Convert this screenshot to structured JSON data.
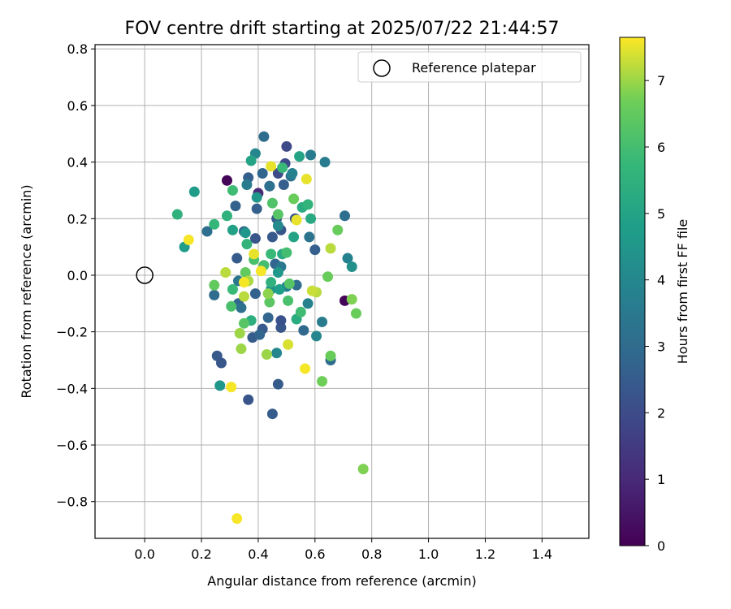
{
  "chart_data": {
    "type": "scatter",
    "title": "FOV centre drift starting at 2025/07/22 21:44:57",
    "xlabel": "Angular distance from reference (arcmin)",
    "ylabel": "Rotation from reference (arcmin)",
    "xlim": [
      -0.175,
      1.565
    ],
    "ylim": [
      -0.93,
      0.815
    ],
    "xticks": [
      0.0,
      0.2,
      0.4,
      0.6,
      0.8,
      1.0,
      1.2,
      1.4
    ],
    "xtick_labels": [
      "0.0",
      "0.2",
      "0.4",
      "0.6",
      "0.8",
      "1.0",
      "1.2",
      "1.4"
    ],
    "yticks": [
      -0.8,
      -0.6,
      -0.4,
      -0.2,
      0.0,
      0.2,
      0.4,
      0.6,
      0.8
    ],
    "ytick_labels": [
      "−0.8",
      "−0.6",
      "−0.4",
      "−0.2",
      "0.0",
      "0.2",
      "0.4",
      "0.6",
      "0.8"
    ],
    "grid": true,
    "legend": {
      "placement": "top-right",
      "entries": [
        "Reference platepar"
      ]
    },
    "reference_point": {
      "name": "Reference platepar",
      "x": 0.0,
      "y": 0.0
    },
    "colorbar": {
      "label": "Hours from first FF file",
      "colormap": "viridis",
      "range": [
        0,
        7.65
      ],
      "ticks": [
        0,
        1,
        2,
        3,
        4,
        5,
        6,
        7
      ],
      "tick_labels": [
        "0",
        "1",
        "2",
        "3",
        "4",
        "5",
        "6",
        "7"
      ]
    },
    "points": [
      {
        "x": 0.29,
        "y": 0.335,
        "c": 0.1
      },
      {
        "x": 0.705,
        "y": -0.09,
        "c": 0.1
      },
      {
        "x": 0.4,
        "y": 0.29,
        "c": 1.0
      },
      {
        "x": 0.44,
        "y": 0.315,
        "c": 1.4
      },
      {
        "x": 0.5,
        "y": 0.455,
        "c": 1.9
      },
      {
        "x": 0.495,
        "y": 0.395,
        "c": 2.0
      },
      {
        "x": 0.47,
        "y": 0.36,
        "c": 2.0
      },
      {
        "x": 0.53,
        "y": 0.2,
        "c": 2.3
      },
      {
        "x": 0.48,
        "y": 0.16,
        "c": 2.3
      },
      {
        "x": 0.45,
        "y": 0.135,
        "c": 2.4
      },
      {
        "x": 0.39,
        "y": 0.13,
        "c": 2.3
      },
      {
        "x": 0.48,
        "y": -0.185,
        "c": 2.3
      },
      {
        "x": 0.415,
        "y": -0.19,
        "c": 2.4
      },
      {
        "x": 0.38,
        "y": -0.22,
        "c": 2.5
      },
      {
        "x": 0.48,
        "y": -0.16,
        "c": 2.2
      },
      {
        "x": 0.255,
        "y": -0.285,
        "c": 2.4
      },
      {
        "x": 0.27,
        "y": -0.31,
        "c": 2.3
      },
      {
        "x": 0.365,
        "y": -0.44,
        "c": 2.3
      },
      {
        "x": 0.45,
        "y": -0.49,
        "c": 2.5
      },
      {
        "x": 0.47,
        "y": -0.385,
        "c": 2.5
      },
      {
        "x": 0.325,
        "y": 0.06,
        "c": 2.5
      },
      {
        "x": 0.395,
        "y": 0.235,
        "c": 2.6
      },
      {
        "x": 0.365,
        "y": 0.345,
        "c": 2.6
      },
      {
        "x": 0.32,
        "y": 0.245,
        "c": 2.7
      },
      {
        "x": 0.35,
        "y": 0.155,
        "c": 2.8
      },
      {
        "x": 0.415,
        "y": 0.36,
        "c": 2.8
      },
      {
        "x": 0.6,
        "y": 0.09,
        "c": 2.6
      },
      {
        "x": 0.465,
        "y": 0.2,
        "c": 2.6
      },
      {
        "x": 0.49,
        "y": 0.32,
        "c": 2.6
      },
      {
        "x": 0.42,
        "y": 0.49,
        "c": 3.0
      },
      {
        "x": 0.405,
        "y": -0.21,
        "c": 2.8
      },
      {
        "x": 0.435,
        "y": -0.15,
        "c": 2.8
      },
      {
        "x": 0.33,
        "y": -0.1,
        "c": 2.8
      },
      {
        "x": 0.39,
        "y": -0.065,
        "c": 2.7
      },
      {
        "x": 0.46,
        "y": 0.04,
        "c": 2.8
      },
      {
        "x": 0.56,
        "y": -0.195,
        "c": 2.9
      },
      {
        "x": 0.535,
        "y": -0.035,
        "c": 3.0
      },
      {
        "x": 0.245,
        "y": -0.07,
        "c": 3.0
      },
      {
        "x": 0.655,
        "y": -0.3,
        "c": 3.0
      },
      {
        "x": 0.705,
        "y": 0.21,
        "c": 3.1
      },
      {
        "x": 0.22,
        "y": 0.155,
        "c": 3.1
      },
      {
        "x": 0.34,
        "y": -0.115,
        "c": 3.2
      },
      {
        "x": 0.44,
        "y": 0.315,
        "c": 3.2
      },
      {
        "x": 0.58,
        "y": 0.135,
        "c": 3.3
      },
      {
        "x": 0.515,
        "y": 0.35,
        "c": 3.3
      },
      {
        "x": 0.33,
        "y": -0.02,
        "c": 3.4
      },
      {
        "x": 0.48,
        "y": 0.03,
        "c": 3.5
      },
      {
        "x": 0.625,
        "y": -0.165,
        "c": 3.6
      },
      {
        "x": 0.585,
        "y": 0.425,
        "c": 3.6
      },
      {
        "x": 0.635,
        "y": 0.4,
        "c": 3.6
      },
      {
        "x": 0.715,
        "y": 0.06,
        "c": 3.8
      },
      {
        "x": 0.5,
        "y": -0.04,
        "c": 3.7
      },
      {
        "x": 0.36,
        "y": 0.32,
        "c": 3.6
      },
      {
        "x": 0.575,
        "y": -0.1,
        "c": 3.8
      },
      {
        "x": 0.605,
        "y": -0.215,
        "c": 4.0
      },
      {
        "x": 0.39,
        "y": 0.43,
        "c": 4.0
      },
      {
        "x": 0.465,
        "y": -0.275,
        "c": 4.0
      },
      {
        "x": 0.52,
        "y": 0.36,
        "c": 3.8
      },
      {
        "x": 0.47,
        "y": 0.175,
        "c": 4.1
      },
      {
        "x": 0.73,
        "y": 0.03,
        "c": 4.3
      },
      {
        "x": 0.355,
        "y": 0.15,
        "c": 4.5
      },
      {
        "x": 0.445,
        "y": -0.05,
        "c": 4.4
      },
      {
        "x": 0.395,
        "y": 0.275,
        "c": 4.5
      },
      {
        "x": 0.47,
        "y": 0.01,
        "c": 4.6
      },
      {
        "x": 0.265,
        "y": -0.39,
        "c": 4.5
      },
      {
        "x": 0.14,
        "y": 0.1,
        "c": 4.7
      },
      {
        "x": 0.175,
        "y": 0.295,
        "c": 4.7
      },
      {
        "x": 0.475,
        "y": -0.05,
        "c": 4.8
      },
      {
        "x": 0.31,
        "y": 0.16,
        "c": 4.9
      },
      {
        "x": 0.545,
        "y": 0.42,
        "c": 5.0
      },
      {
        "x": 0.375,
        "y": 0.405,
        "c": 5.0
      },
      {
        "x": 0.525,
        "y": 0.135,
        "c": 5.0
      },
      {
        "x": 0.485,
        "y": 0.075,
        "c": 5.2
      },
      {
        "x": 0.585,
        "y": 0.2,
        "c": 5.2
      },
      {
        "x": 0.535,
        "y": -0.155,
        "c": 5.3
      },
      {
        "x": 0.555,
        "y": 0.24,
        "c": 5.3
      },
      {
        "x": 0.375,
        "y": -0.16,
        "c": 5.4
      },
      {
        "x": 0.29,
        "y": 0.21,
        "c": 5.5
      },
      {
        "x": 0.115,
        "y": 0.215,
        "c": 5.5
      },
      {
        "x": 0.445,
        "y": -0.025,
        "c": 5.5
      },
      {
        "x": 0.36,
        "y": 0.11,
        "c": 5.6
      },
      {
        "x": 0.245,
        "y": 0.18,
        "c": 5.7
      },
      {
        "x": 0.575,
        "y": 0.25,
        "c": 5.6
      },
      {
        "x": 0.31,
        "y": -0.05,
        "c": 5.8
      },
      {
        "x": 0.55,
        "y": -0.13,
        "c": 5.9
      },
      {
        "x": 0.445,
        "y": 0.075,
        "c": 5.8
      },
      {
        "x": 0.31,
        "y": 0.3,
        "c": 5.9
      },
      {
        "x": 0.485,
        "y": 0.38,
        "c": 5.8
      },
      {
        "x": 0.42,
        "y": 0.035,
        "c": 6.0
      },
      {
        "x": 0.5,
        "y": 0.08,
        "c": 6.0
      },
      {
        "x": 0.505,
        "y": -0.09,
        "c": 6.1
      },
      {
        "x": 0.385,
        "y": 0.055,
        "c": 6.1
      },
      {
        "x": 0.305,
        "y": -0.11,
        "c": 6.1
      },
      {
        "x": 0.45,
        "y": 0.255,
        "c": 6.2
      },
      {
        "x": 0.47,
        "y": 0.215,
        "c": 6.3
      },
      {
        "x": 0.51,
        "y": -0.03,
        "c": 6.3
      },
      {
        "x": 0.35,
        "y": -0.17,
        "c": 6.3
      },
      {
        "x": 0.44,
        "y": -0.095,
        "c": 6.4
      },
      {
        "x": 0.355,
        "y": 0.01,
        "c": 6.5
      },
      {
        "x": 0.245,
        "y": -0.035,
        "c": 6.5
      },
      {
        "x": 0.525,
        "y": 0.27,
        "c": 6.6
      },
      {
        "x": 0.645,
        "y": -0.005,
        "c": 6.6
      },
      {
        "x": 0.68,
        "y": 0.16,
        "c": 6.6
      },
      {
        "x": 0.655,
        "y": -0.285,
        "c": 6.6
      },
      {
        "x": 0.625,
        "y": -0.375,
        "c": 6.7
      },
      {
        "x": 0.73,
        "y": -0.085,
        "c": 6.8
      },
      {
        "x": 0.745,
        "y": -0.135,
        "c": 6.6
      },
      {
        "x": 0.77,
        "y": -0.685,
        "c": 6.8
      },
      {
        "x": 0.435,
        "y": -0.065,
        "c": 6.9
      },
      {
        "x": 0.43,
        "y": -0.28,
        "c": 7.0
      },
      {
        "x": 0.335,
        "y": -0.205,
        "c": 7.0
      },
      {
        "x": 0.34,
        "y": -0.26,
        "c": 7.0
      },
      {
        "x": 0.365,
        "y": -0.02,
        "c": 7.1
      },
      {
        "x": 0.35,
        "y": -0.075,
        "c": 7.2
      },
      {
        "x": 0.605,
        "y": -0.06,
        "c": 7.2
      },
      {
        "x": 0.655,
        "y": 0.095,
        "c": 7.2
      },
      {
        "x": 0.285,
        "y": 0.01,
        "c": 7.2
      },
      {
        "x": 0.59,
        "y": -0.055,
        "c": 7.3
      },
      {
        "x": 0.505,
        "y": -0.245,
        "c": 7.4
      },
      {
        "x": 0.385,
        "y": 0.075,
        "c": 7.5
      },
      {
        "x": 0.57,
        "y": 0.34,
        "c": 7.5
      },
      {
        "x": 0.535,
        "y": 0.195,
        "c": 7.5
      },
      {
        "x": 0.445,
        "y": 0.385,
        "c": 7.5
      },
      {
        "x": 0.305,
        "y": -0.395,
        "c": 7.6
      },
      {
        "x": 0.325,
        "y": -0.86,
        "c": 7.6
      },
      {
        "x": 0.565,
        "y": -0.33,
        "c": 7.6
      },
      {
        "x": 0.41,
        "y": 0.015,
        "c": 7.6
      },
      {
        "x": 0.35,
        "y": -0.025,
        "c": 7.6
      },
      {
        "x": 0.155,
        "y": 0.125,
        "c": 7.6
      }
    ]
  }
}
